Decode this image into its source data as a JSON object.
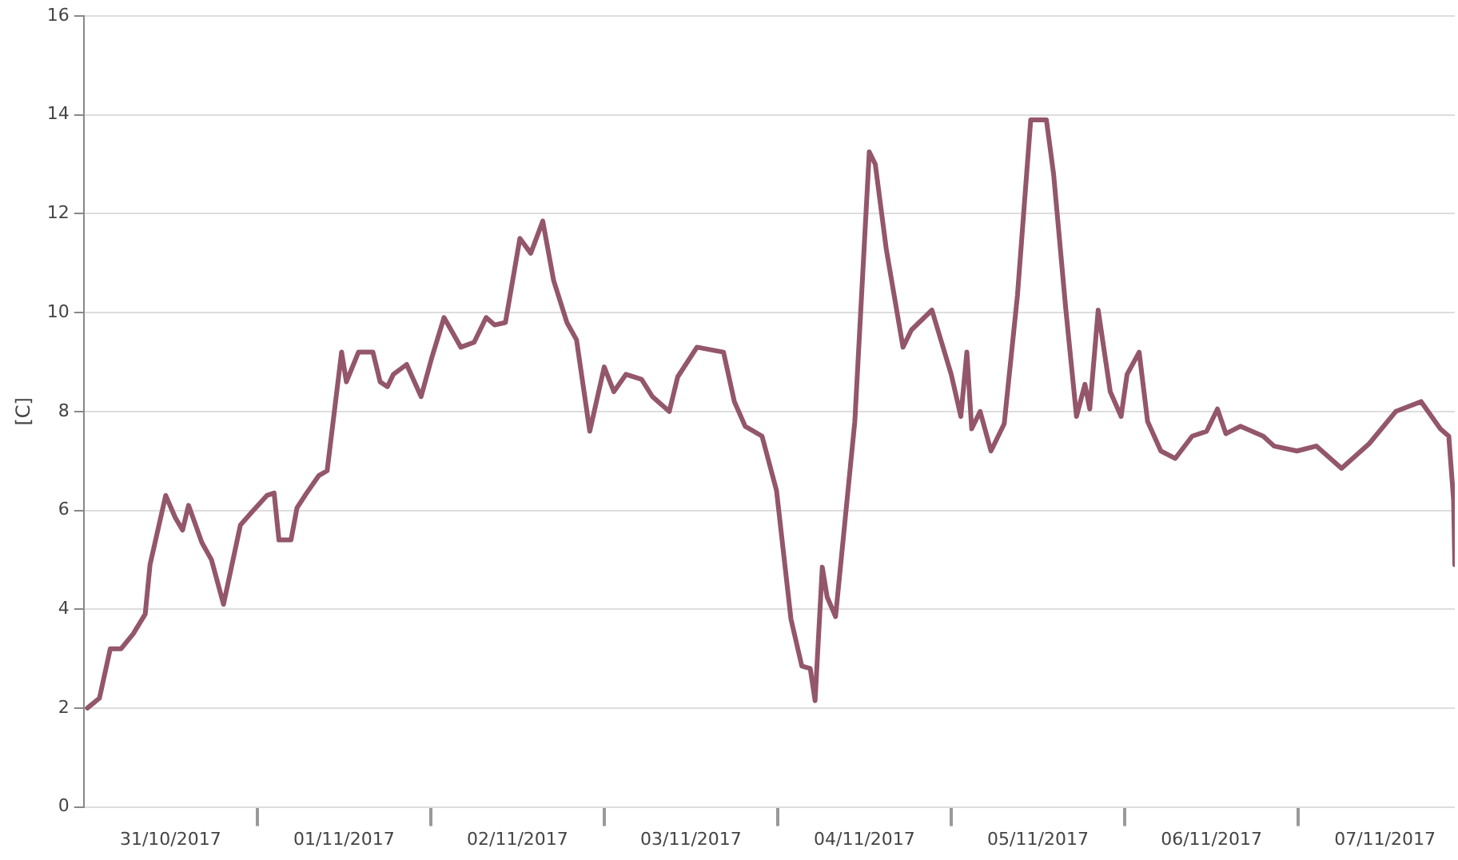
{
  "chart_data": {
    "type": "line",
    "ylabel": "[C]",
    "x": [
      "2017-10-31T00:30",
      "2017-10-31T02:10",
      "2017-10-31T03:40",
      "2017-10-31T05:10",
      "2017-10-31T06:50",
      "2017-10-31T08:30",
      "2017-10-31T09:10",
      "2017-10-31T11:20",
      "2017-10-31T12:40",
      "2017-10-31T13:40",
      "2017-10-31T14:30",
      "2017-10-31T16:20",
      "2017-10-31T17:40",
      "2017-10-31T19:20",
      "2017-10-31T21:40",
      "2017-10-31T23:10",
      "2017-11-01T01:20",
      "2017-11-01T02:20",
      "2017-11-01T03:00",
      "2017-11-01T04:40",
      "2017-11-01T05:30",
      "2017-11-01T06:50",
      "2017-11-01T08:30",
      "2017-11-01T09:40",
      "2017-11-01T11:40",
      "2017-11-01T12:20",
      "2017-11-01T14:00",
      "2017-11-01T16:00",
      "2017-11-01T17:00",
      "2017-11-01T18:00",
      "2017-11-01T18:50",
      "2017-11-01T20:40",
      "2017-11-01T22:40",
      "2017-11-02T00:10",
      "2017-11-02T01:50",
      "2017-11-02T03:00",
      "2017-11-02T04:10",
      "2017-11-02T06:00",
      "2017-11-02T07:40",
      "2017-11-02T08:50",
      "2017-11-02T10:20",
      "2017-11-02T12:20",
      "2017-11-02T13:50",
      "2017-11-02T15:30",
      "2017-11-02T17:00",
      "2017-11-02T18:50",
      "2017-11-02T20:10",
      "2017-11-02T22:00",
      "2017-11-03T00:00",
      "2017-11-03T01:20",
      "2017-11-03T03:00",
      "2017-11-03T05:10",
      "2017-11-03T06:40",
      "2017-11-03T09:00",
      "2017-11-03T10:10",
      "2017-11-03T12:50",
      "2017-11-03T16:30",
      "2017-11-03T18:00",
      "2017-11-03T19:30",
      "2017-11-03T21:50",
      "2017-11-03T23:50",
      "2017-11-04T01:50",
      "2017-11-04T03:20",
      "2017-11-04T04:30",
      "2017-11-04T05:10",
      "2017-11-04T06:10",
      "2017-11-04T06:50",
      "2017-11-04T08:00",
      "2017-11-04T10:40",
      "2017-11-04T12:40",
      "2017-11-04T13:30",
      "2017-11-04T15:00",
      "2017-11-04T17:20",
      "2017-11-04T18:30",
      "2017-11-04T21:20",
      "2017-11-05T00:00",
      "2017-11-05T01:20",
      "2017-11-05T02:10",
      "2017-11-05T02:50",
      "2017-11-05T04:00",
      "2017-11-05T05:30",
      "2017-11-05T07:20",
      "2017-11-05T09:10",
      "2017-11-05T11:00",
      "2017-11-05T13:10",
      "2017-11-05T14:10",
      "2017-11-05T15:50",
      "2017-11-05T17:20",
      "2017-11-05T18:30",
      "2017-11-05T19:10",
      "2017-11-05T20:20",
      "2017-11-05T22:00",
      "2017-11-05T23:30",
      "2017-11-06T00:20",
      "2017-11-06T02:00",
      "2017-11-06T03:10",
      "2017-11-06T05:00",
      "2017-11-06T07:00",
      "2017-11-06T09:20",
      "2017-11-06T11:20",
      "2017-11-06T12:50",
      "2017-11-06T14:00",
      "2017-11-06T16:00",
      "2017-11-06T19:10",
      "2017-11-06T20:40",
      "2017-11-06T23:50",
      "2017-11-07T02:30",
      "2017-11-07T06:00",
      "2017-11-07T09:50",
      "2017-11-07T13:30",
      "2017-11-07T17:00",
      "2017-11-07T19:40",
      "2017-11-07T20:50",
      "2017-11-07T21:30",
      "2017-11-07T21:40"
    ],
    "series": [
      {
        "color": "#93566a",
        "values": [
          2.0,
          2.2,
          3.2,
          3.2,
          3.5,
          3.9,
          4.9,
          6.3,
          5.85,
          5.6,
          6.1,
          5.35,
          5.0,
          4.1,
          5.7,
          5.95,
          6.3,
          6.35,
          5.4,
          5.4,
          6.05,
          6.35,
          6.7,
          6.8,
          9.2,
          8.6,
          9.2,
          9.2,
          8.6,
          8.5,
          8.75,
          8.95,
          8.3,
          9.1,
          9.9,
          9.6,
          9.3,
          9.4,
          9.9,
          9.75,
          9.8,
          11.5,
          11.2,
          11.85,
          10.65,
          9.8,
          9.45,
          7.6,
          8.9,
          8.4,
          8.75,
          8.65,
          8.3,
          8.0,
          8.7,
          9.3,
          9.2,
          8.2,
          7.7,
          7.5,
          6.4,
          3.8,
          2.85,
          2.8,
          2.15,
          4.85,
          4.25,
          3.85,
          7.8,
          13.25,
          13.0,
          11.3,
          9.3,
          9.65,
          10.05,
          8.75,
          7.9,
          9.2,
          7.65,
          8.0,
          7.2,
          7.75,
          10.35,
          13.9,
          13.9,
          12.8,
          10.1,
          7.9,
          8.55,
          8.05,
          10.05,
          8.4,
          7.9,
          8.75,
          9.2,
          7.8,
          7.2,
          7.05,
          7.5,
          7.6,
          8.05,
          7.55,
          7.7,
          7.5,
          7.3,
          7.2,
          7.3,
          6.85,
          7.35,
          8.0,
          8.2,
          7.65,
          7.5,
          6.2,
          4.9
        ]
      }
    ],
    "xlim": [
      "2017-10-31T00:00",
      "2017-11-07T21:40"
    ],
    "xticks": [
      {
        "value": "2017-10-31T12:00",
        "label": "31/10/2017"
      },
      {
        "value": "2017-11-01T00:00",
        "label": null
      },
      {
        "value": "2017-11-01T12:00",
        "label": "01/11/2017"
      },
      {
        "value": "2017-11-02T00:00",
        "label": null
      },
      {
        "value": "2017-11-02T12:00",
        "label": "02/11/2017"
      },
      {
        "value": "2017-11-03T00:00",
        "label": null
      },
      {
        "value": "2017-11-03T12:00",
        "label": "03/11/2017"
      },
      {
        "value": "2017-11-04T00:00",
        "label": null
      },
      {
        "value": "2017-11-04T12:00",
        "label": "04/11/2017"
      },
      {
        "value": "2017-11-05T00:00",
        "label": null
      },
      {
        "value": "2017-11-05T12:00",
        "label": "05/11/2017"
      },
      {
        "value": "2017-11-06T00:00",
        "label": null
      },
      {
        "value": "2017-11-06T12:00",
        "label": "06/11/2017"
      },
      {
        "value": "2017-11-07T00:00",
        "label": null
      },
      {
        "value": "2017-11-07T12:00",
        "label": "07/11/2017"
      }
    ],
    "ylim": [
      0,
      16
    ],
    "yticks": [
      0,
      2,
      4,
      6,
      8,
      10,
      12,
      14,
      16
    ],
    "grid": "y",
    "legend": false,
    "marker": "none",
    "line_style": "solid"
  }
}
